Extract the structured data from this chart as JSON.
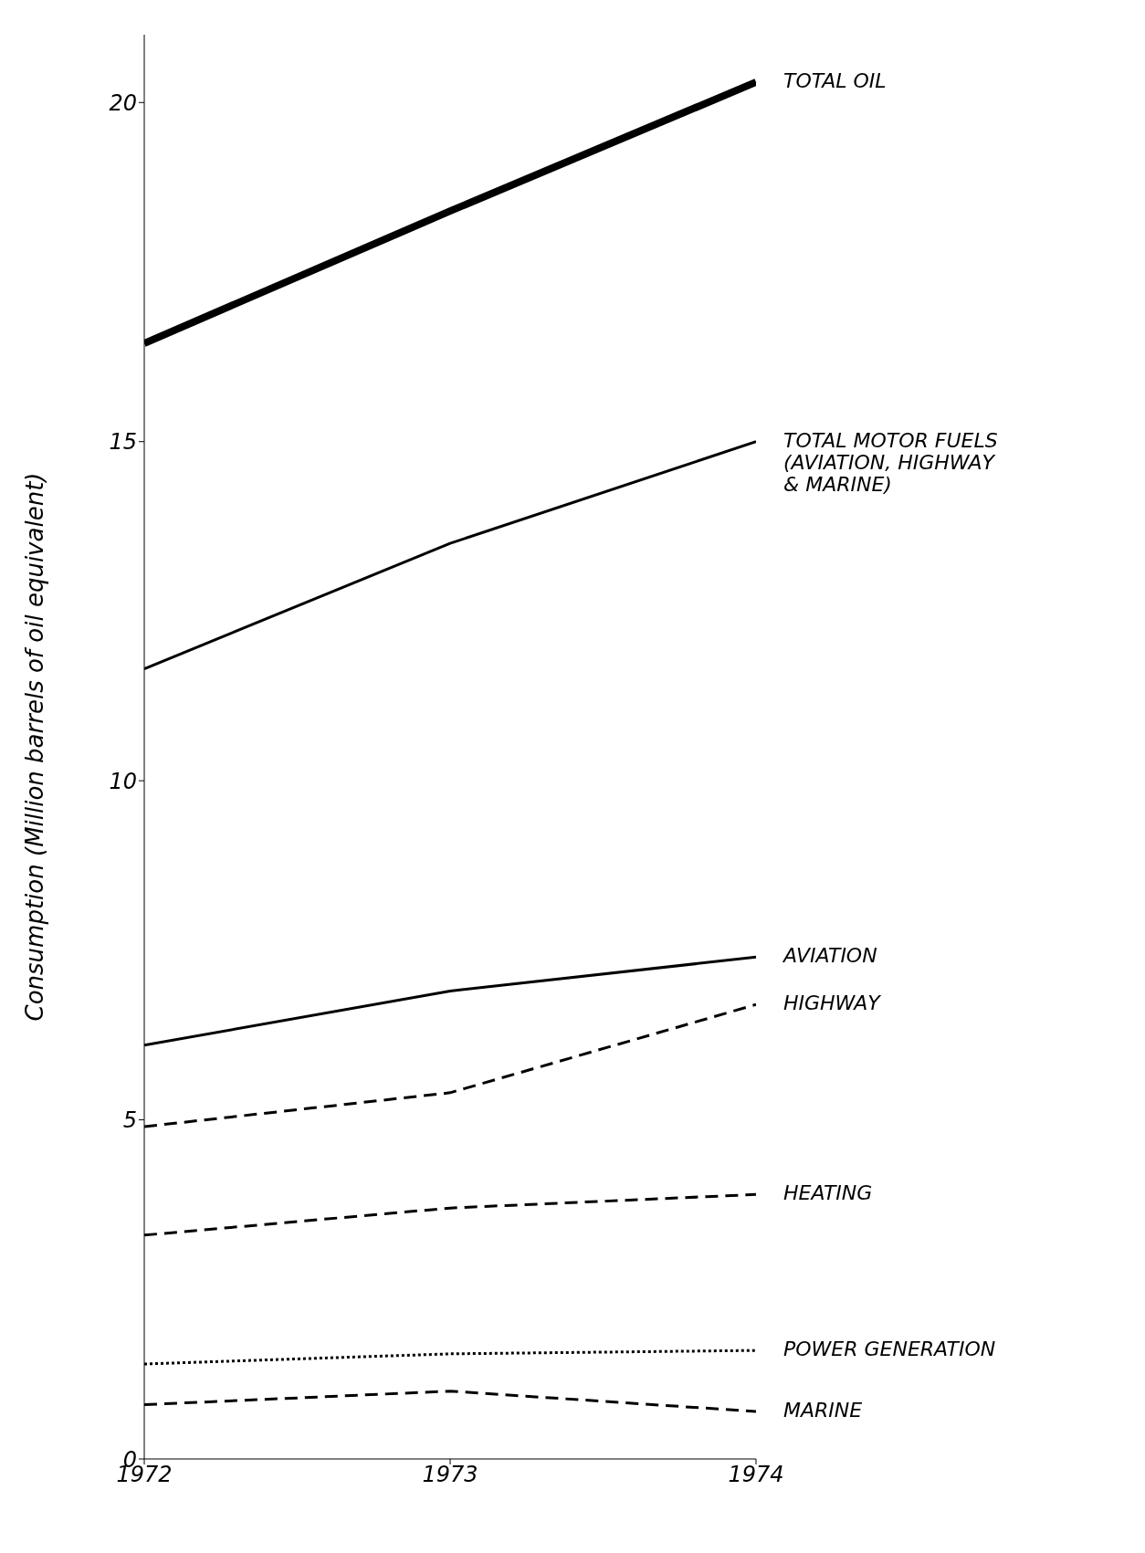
{
  "chart_data": {
    "type": "line",
    "ylabel": "Consumption (Million barrels of oil equivalent)",
    "x": [
      1972,
      1973,
      1974
    ],
    "xlim": [
      1972,
      1974
    ],
    "xticks": [
      1972,
      1973,
      1974
    ],
    "ylim": [
      0,
      21
    ],
    "yticks": [
      0,
      5,
      10,
      15,
      20
    ],
    "grid": false,
    "legend": false,
    "marker": "none",
    "series": [
      {
        "name": "TOTAL OIL",
        "color": "#000000",
        "line_style": "solid",
        "values": [
          16.45,
          18.4,
          20.3
        ]
      },
      {
        "name": "TOTAL MOTOR FUELS (AVIATION, HIGHWAY & MARINE)",
        "color": "#000000",
        "line_style": "solid",
        "values": [
          11.65,
          13.5,
          15.0
        ]
      },
      {
        "name": "AVIATION",
        "color": "#000000",
        "line_style": "solid",
        "values": [
          6.1,
          6.9,
          7.4
        ]
      },
      {
        "name": "HIGHWAY",
        "color": "#000000",
        "line_style": "dashed",
        "values": [
          4.9,
          5.4,
          6.7
        ]
      },
      {
        "name": "HEATING",
        "color": "#000000",
        "line_style": "dashed",
        "values": [
          3.3,
          3.7,
          3.9
        ]
      },
      {
        "name": "POWER GENERATION",
        "color": "#000000",
        "line_style": "dotted",
        "values": [
          1.4,
          1.55,
          1.6
        ]
      },
      {
        "name": "MARINE",
        "color": "#000000",
        "line_style": "dashed",
        "values": [
          0.8,
          1.0,
          0.7
        ]
      }
    ]
  }
}
